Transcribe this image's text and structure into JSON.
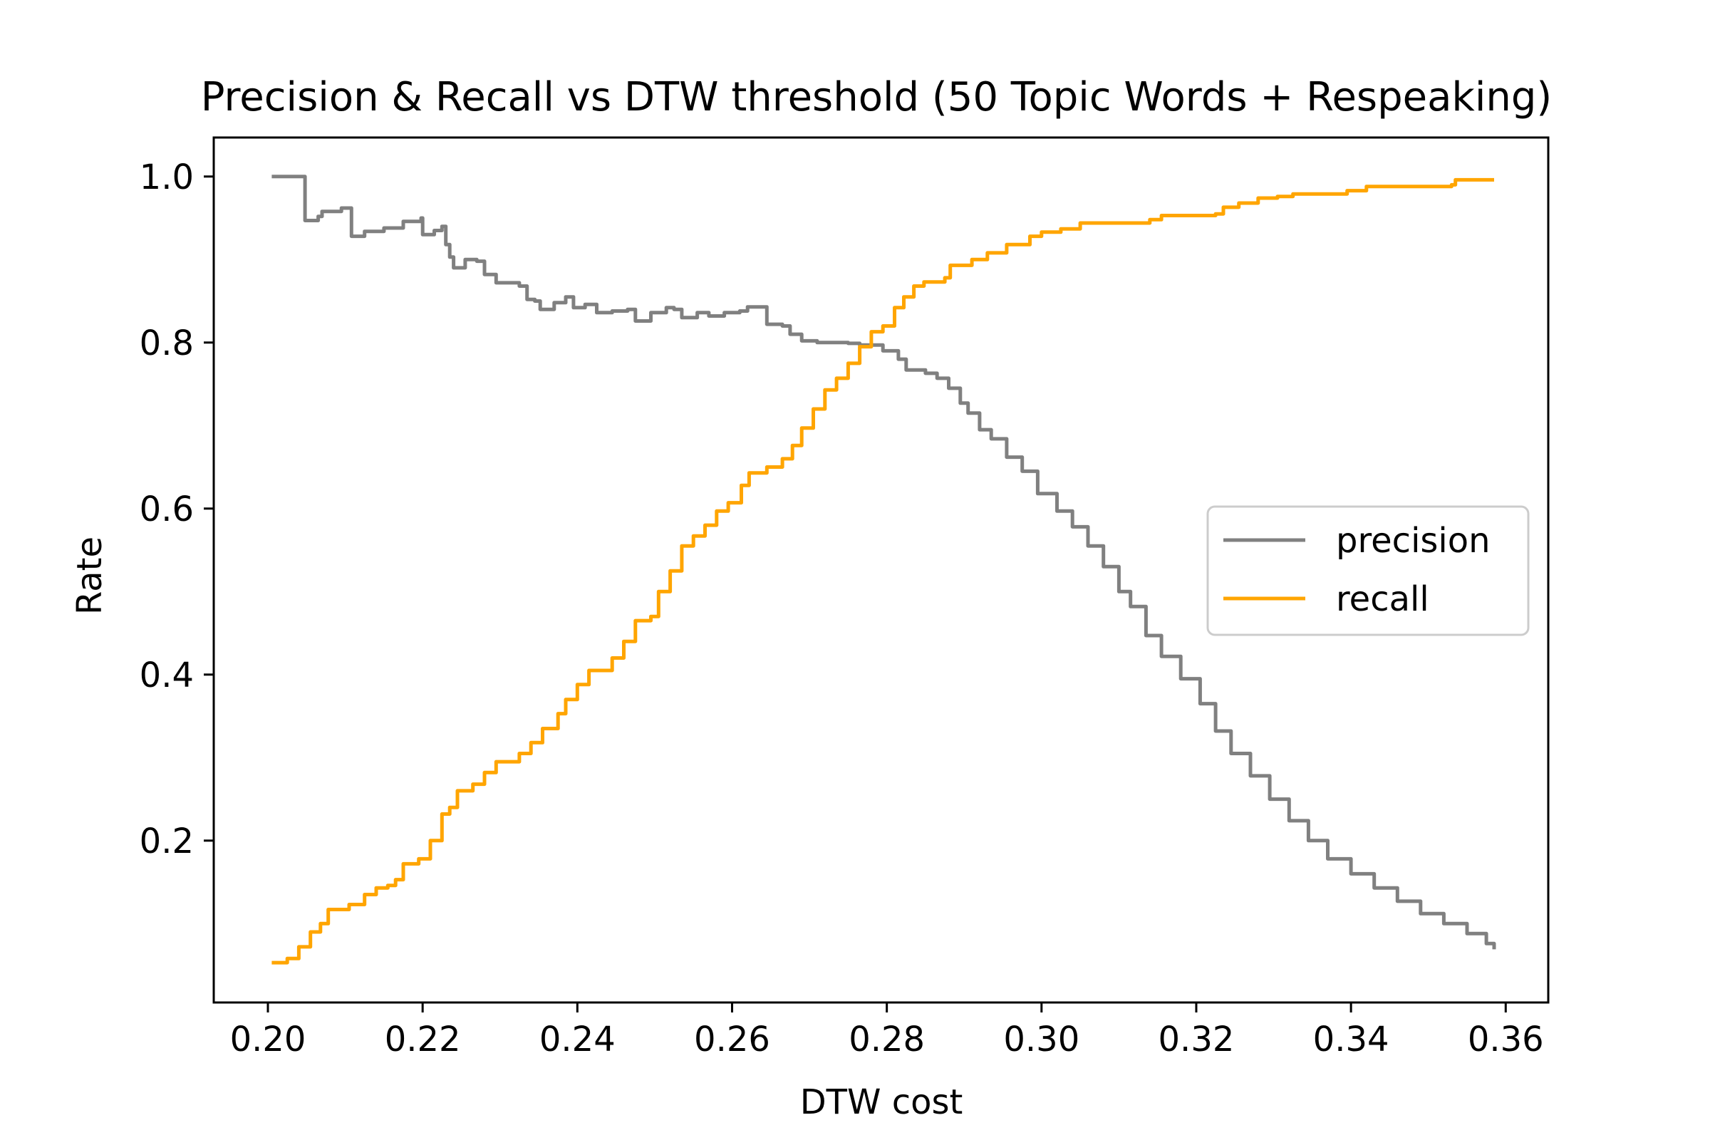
{
  "chart_data": {
    "type": "line",
    "title": "Precision & Recall vs DTW threshold  (50 Topic Words + Respeaking)",
    "xlabel": "DTW cost",
    "ylabel": "Rate",
    "xlim": [
      0.193,
      0.3655
    ],
    "ylim": [
      0.005,
      1.047
    ],
    "xticks": [
      "0.20",
      "0.22",
      "0.24",
      "0.26",
      "0.28",
      "0.30",
      "0.32",
      "0.34",
      "0.36"
    ],
    "yticks": [
      "0.2",
      "0.4",
      "0.6",
      "0.8",
      "1.0"
    ],
    "grid": false,
    "legend_position": "center-right",
    "series": [
      {
        "name": "precision",
        "color": "#808080",
        "points": [
          [
            0.2005,
            1.0
          ],
          [
            0.2045,
            1.0
          ],
          [
            0.2048,
            0.947
          ],
          [
            0.2065,
            0.952
          ],
          [
            0.207,
            0.958
          ],
          [
            0.2095,
            0.962
          ],
          [
            0.2105,
            0.962
          ],
          [
            0.2108,
            0.928
          ],
          [
            0.2125,
            0.934
          ],
          [
            0.215,
            0.938
          ],
          [
            0.2175,
            0.946
          ],
          [
            0.219,
            0.946
          ],
          [
            0.2198,
            0.95
          ],
          [
            0.22,
            0.93
          ],
          [
            0.2215,
            0.935
          ],
          [
            0.2225,
            0.94
          ],
          [
            0.223,
            0.918
          ],
          [
            0.2235,
            0.903
          ],
          [
            0.224,
            0.89
          ],
          [
            0.2255,
            0.9
          ],
          [
            0.227,
            0.898
          ],
          [
            0.228,
            0.882
          ],
          [
            0.2295,
            0.872
          ],
          [
            0.2325,
            0.868
          ],
          [
            0.2335,
            0.852
          ],
          [
            0.2345,
            0.85
          ],
          [
            0.2352,
            0.84
          ],
          [
            0.237,
            0.848
          ],
          [
            0.2385,
            0.855
          ],
          [
            0.2395,
            0.842
          ],
          [
            0.241,
            0.846
          ],
          [
            0.2425,
            0.836
          ],
          [
            0.2445,
            0.838
          ],
          [
            0.2465,
            0.84
          ],
          [
            0.2475,
            0.826
          ],
          [
            0.2495,
            0.836
          ],
          [
            0.2515,
            0.842
          ],
          [
            0.2525,
            0.84
          ],
          [
            0.2535,
            0.83
          ],
          [
            0.2555,
            0.836
          ],
          [
            0.257,
            0.832
          ],
          [
            0.259,
            0.836
          ],
          [
            0.261,
            0.838
          ],
          [
            0.262,
            0.843
          ],
          [
            0.2635,
            0.843
          ],
          [
            0.2645,
            0.822
          ],
          [
            0.2665,
            0.82
          ],
          [
            0.2675,
            0.81
          ],
          [
            0.269,
            0.802
          ],
          [
            0.271,
            0.8
          ],
          [
            0.275,
            0.799
          ],
          [
            0.2765,
            0.797
          ],
          [
            0.2795,
            0.79
          ],
          [
            0.2815,
            0.78
          ],
          [
            0.2825,
            0.767
          ],
          [
            0.285,
            0.763
          ],
          [
            0.2865,
            0.757
          ],
          [
            0.288,
            0.745
          ],
          [
            0.2895,
            0.727
          ],
          [
            0.2905,
            0.715
          ],
          [
            0.292,
            0.695
          ],
          [
            0.2935,
            0.684
          ],
          [
            0.2955,
            0.662
          ],
          [
            0.2975,
            0.645
          ],
          [
            0.2995,
            0.618
          ],
          [
            0.302,
            0.597
          ],
          [
            0.304,
            0.578
          ],
          [
            0.306,
            0.555
          ],
          [
            0.308,
            0.53
          ],
          [
            0.31,
            0.5
          ],
          [
            0.3115,
            0.482
          ],
          [
            0.3135,
            0.447
          ],
          [
            0.3155,
            0.422
          ],
          [
            0.318,
            0.395
          ],
          [
            0.3205,
            0.365
          ],
          [
            0.3225,
            0.332
          ],
          [
            0.3245,
            0.305
          ],
          [
            0.327,
            0.278
          ],
          [
            0.3295,
            0.25
          ],
          [
            0.332,
            0.224
          ],
          [
            0.3345,
            0.2
          ],
          [
            0.337,
            0.178
          ],
          [
            0.34,
            0.16
          ],
          [
            0.343,
            0.143
          ],
          [
            0.346,
            0.127
          ],
          [
            0.349,
            0.112
          ],
          [
            0.352,
            0.1
          ],
          [
            0.355,
            0.088
          ],
          [
            0.3575,
            0.076
          ],
          [
            0.3585,
            0.069
          ]
        ]
      },
      {
        "name": "recall",
        "color": "#ffa500",
        "points": [
          [
            0.2005,
            0.053
          ],
          [
            0.2025,
            0.058
          ],
          [
            0.204,
            0.072
          ],
          [
            0.2055,
            0.09
          ],
          [
            0.2068,
            0.1
          ],
          [
            0.2078,
            0.117
          ],
          [
            0.2105,
            0.123
          ],
          [
            0.2125,
            0.135
          ],
          [
            0.214,
            0.143
          ],
          [
            0.2155,
            0.146
          ],
          [
            0.2165,
            0.153
          ],
          [
            0.2175,
            0.172
          ],
          [
            0.2195,
            0.178
          ],
          [
            0.221,
            0.2
          ],
          [
            0.2225,
            0.232
          ],
          [
            0.2235,
            0.24
          ],
          [
            0.2245,
            0.26
          ],
          [
            0.2265,
            0.268
          ],
          [
            0.228,
            0.282
          ],
          [
            0.2295,
            0.295
          ],
          [
            0.2325,
            0.305
          ],
          [
            0.234,
            0.318
          ],
          [
            0.2355,
            0.335
          ],
          [
            0.2375,
            0.353
          ],
          [
            0.2385,
            0.37
          ],
          [
            0.24,
            0.388
          ],
          [
            0.2415,
            0.405
          ],
          [
            0.2445,
            0.42
          ],
          [
            0.246,
            0.44
          ],
          [
            0.2475,
            0.465
          ],
          [
            0.2495,
            0.47
          ],
          [
            0.2505,
            0.5
          ],
          [
            0.252,
            0.525
          ],
          [
            0.2535,
            0.555
          ],
          [
            0.255,
            0.567
          ],
          [
            0.2565,
            0.58
          ],
          [
            0.258,
            0.597
          ],
          [
            0.2595,
            0.607
          ],
          [
            0.2612,
            0.628
          ],
          [
            0.2622,
            0.643
          ],
          [
            0.2645,
            0.65
          ],
          [
            0.2665,
            0.66
          ],
          [
            0.2678,
            0.676
          ],
          [
            0.269,
            0.697
          ],
          [
            0.2705,
            0.72
          ],
          [
            0.272,
            0.743
          ],
          [
            0.2735,
            0.757
          ],
          [
            0.275,
            0.775
          ],
          [
            0.2765,
            0.795
          ],
          [
            0.278,
            0.813
          ],
          [
            0.2795,
            0.82
          ],
          [
            0.281,
            0.842
          ],
          [
            0.2822,
            0.855
          ],
          [
            0.2835,
            0.868
          ],
          [
            0.2848,
            0.873
          ],
          [
            0.2875,
            0.878
          ],
          [
            0.2882,
            0.893
          ],
          [
            0.291,
            0.9
          ],
          [
            0.293,
            0.908
          ],
          [
            0.2955,
            0.918
          ],
          [
            0.2985,
            0.928
          ],
          [
            0.3,
            0.933
          ],
          [
            0.3025,
            0.937
          ],
          [
            0.305,
            0.944
          ],
          [
            0.308,
            0.944
          ],
          [
            0.314,
            0.948
          ],
          [
            0.3155,
            0.953
          ],
          [
            0.3195,
            0.953
          ],
          [
            0.3225,
            0.955
          ],
          [
            0.3235,
            0.963
          ],
          [
            0.3255,
            0.968
          ],
          [
            0.328,
            0.974
          ],
          [
            0.3305,
            0.976
          ],
          [
            0.3325,
            0.979
          ],
          [
            0.338,
            0.979
          ],
          [
            0.3395,
            0.983
          ],
          [
            0.342,
            0.988
          ],
          [
            0.353,
            0.99
          ],
          [
            0.3535,
            0.996
          ],
          [
            0.3585,
            0.996
          ]
        ]
      }
    ]
  }
}
